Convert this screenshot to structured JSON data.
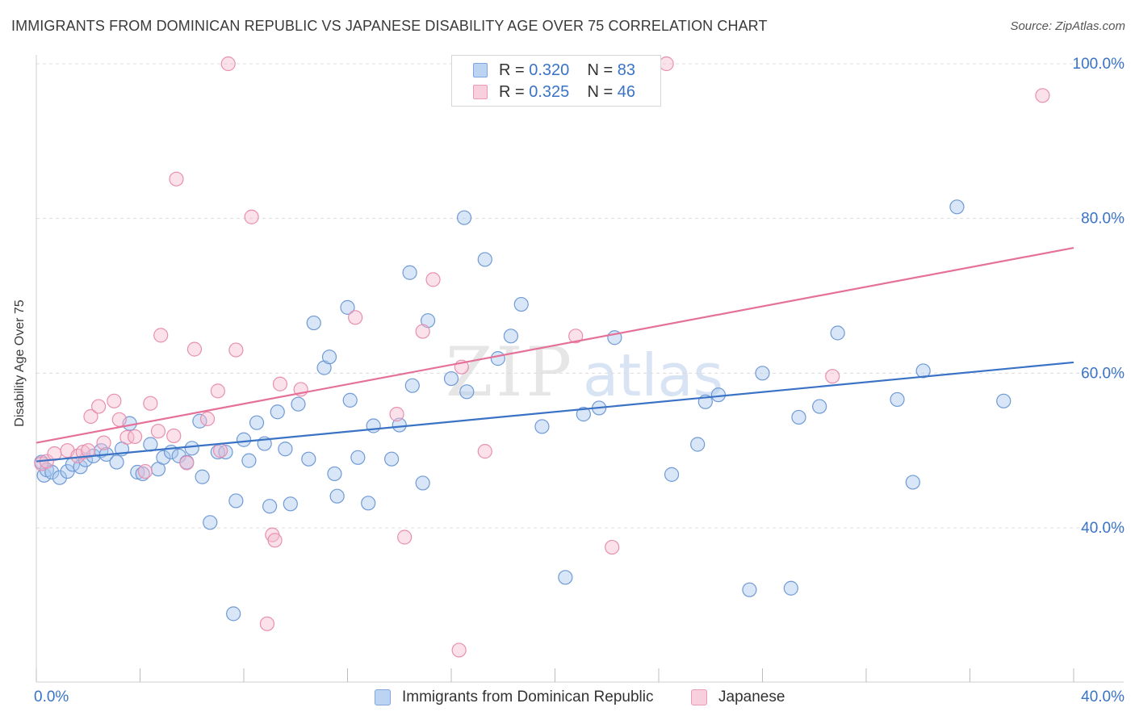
{
  "title": "IMMIGRANTS FROM DOMINICAN REPUBLIC VS JAPANESE DISABILITY AGE OVER 75 CORRELATION CHART",
  "source": "Source: ZipAtlas.com",
  "colors": {
    "blue": "#3a73c6",
    "blue_fill": "#a9c7ee",
    "pink": "#e5719a",
    "pink_fill": "#f4bdd0",
    "grid": "#dcdcdc"
  },
  "legend": {
    "rows": [
      {
        "r_label": "R = ",
        "r_value": "0.320",
        "n_label": "N = ",
        "n_value": "83"
      },
      {
        "r_label": "R = ",
        "r_value": "0.325",
        "n_label": "N = ",
        "n_value": "46"
      }
    ]
  },
  "chart_data": {
    "type": "scatter",
    "title": "IMMIGRANTS FROM DOMINICAN REPUBLIC VS JAPANESE DISABILITY AGE OVER 75 CORRELATION CHART",
    "xlabel": "",
    "ylabel": "Disability Age Over 75",
    "xlim": [
      0,
      40
    ],
    "ylim": [
      20,
      102
    ],
    "x_ticks": [
      {
        "value": 0,
        "label": "0.0%"
      },
      {
        "value": 40,
        "label": "40.0%"
      }
    ],
    "y_ticks": [
      {
        "value": 40,
        "label": "40.0%"
      },
      {
        "value": 60,
        "label": "60.0%"
      },
      {
        "value": 80,
        "label": "80.0%"
      },
      {
        "value": 100,
        "label": "100.0%"
      }
    ],
    "grid": "horizontal dashed",
    "legend_position": "top-center",
    "watermark": "ZIPatlas",
    "series": [
      {
        "name": "Immigrants from Dominican Republic",
        "color": "#3a73c6",
        "r": 0.32,
        "n": 83,
        "trend": {
          "x": [
            0,
            40
          ],
          "y": [
            48.6,
            61.4
          ]
        },
        "points": [
          [
            0.2,
            48.5
          ],
          [
            0.3,
            46.8
          ],
          [
            0.4,
            47.5
          ],
          [
            0.6,
            47.2
          ],
          [
            0.9,
            46.5
          ],
          [
            1.2,
            47.3
          ],
          [
            1.4,
            48.2
          ],
          [
            1.7,
            47.9
          ],
          [
            1.9,
            48.8
          ],
          [
            2.2,
            49.3
          ],
          [
            2.5,
            50.0
          ],
          [
            2.7,
            49.5
          ],
          [
            3.1,
            48.5
          ],
          [
            3.3,
            50.2
          ],
          [
            3.6,
            53.5
          ],
          [
            3.9,
            47.2
          ],
          [
            4.1,
            47.0
          ],
          [
            4.4,
            50.8
          ],
          [
            4.7,
            47.6
          ],
          [
            4.9,
            49.1
          ],
          [
            5.2,
            49.8
          ],
          [
            5.5,
            49.3
          ],
          [
            5.8,
            48.5
          ],
          [
            6.0,
            50.3
          ],
          [
            6.3,
            53.8
          ],
          [
            6.4,
            46.6
          ],
          [
            6.7,
            40.7
          ],
          [
            7.0,
            49.8
          ],
          [
            7.3,
            49.8
          ],
          [
            7.6,
            28.9
          ],
          [
            7.7,
            43.5
          ],
          [
            8.0,
            51.4
          ],
          [
            8.2,
            48.7
          ],
          [
            8.5,
            53.6
          ],
          [
            8.8,
            50.9
          ],
          [
            9.0,
            42.8
          ],
          [
            9.3,
            55.0
          ],
          [
            9.6,
            50.2
          ],
          [
            9.8,
            43.1
          ],
          [
            10.1,
            56.0
          ],
          [
            10.5,
            48.9
          ],
          [
            10.7,
            66.5
          ],
          [
            11.1,
            60.7
          ],
          [
            11.3,
            62.1
          ],
          [
            11.5,
            47.0
          ],
          [
            11.6,
            44.1
          ],
          [
            12.0,
            68.5
          ],
          [
            12.1,
            56.5
          ],
          [
            12.4,
            49.1
          ],
          [
            12.8,
            43.2
          ],
          [
            13.0,
            53.2
          ],
          [
            13.7,
            48.9
          ],
          [
            14.0,
            53.3
          ],
          [
            14.4,
            73.0
          ],
          [
            14.5,
            58.4
          ],
          [
            14.9,
            45.8
          ],
          [
            15.1,
            66.8
          ],
          [
            16.0,
            59.3
          ],
          [
            16.5,
            80.1
          ],
          [
            16.6,
            57.6
          ],
          [
            17.3,
            74.7
          ],
          [
            17.8,
            61.9
          ],
          [
            18.3,
            64.8
          ],
          [
            18.7,
            68.9
          ],
          [
            19.5,
            53.1
          ],
          [
            20.4,
            33.6
          ],
          [
            21.1,
            54.7
          ],
          [
            21.7,
            55.5
          ],
          [
            22.3,
            64.6
          ],
          [
            24.5,
            46.9
          ],
          [
            25.5,
            50.8
          ],
          [
            25.8,
            56.3
          ],
          [
            26.3,
            57.2
          ],
          [
            27.5,
            32.0
          ],
          [
            28.0,
            60.0
          ],
          [
            29.1,
            32.2
          ],
          [
            29.4,
            54.3
          ],
          [
            30.2,
            55.7
          ],
          [
            30.9,
            65.2
          ],
          [
            33.2,
            56.6
          ],
          [
            33.8,
            45.9
          ],
          [
            34.2,
            60.3
          ],
          [
            35.5,
            81.5
          ],
          [
            37.3,
            56.4
          ]
        ]
      },
      {
        "name": "Japanese",
        "color": "#e5719a",
        "r": 0.325,
        "n": 46,
        "trend": {
          "x": [
            0,
            40
          ],
          "y": [
            51.0,
            76.2
          ]
        },
        "points": [
          [
            0.2,
            48.3
          ],
          [
            0.4,
            48.6
          ],
          [
            0.7,
            49.6
          ],
          [
            1.2,
            50.0
          ],
          [
            1.6,
            49.3
          ],
          [
            1.8,
            49.8
          ],
          [
            2.0,
            50.0
          ],
          [
            2.1,
            54.4
          ],
          [
            2.4,
            55.7
          ],
          [
            2.6,
            51.0
          ],
          [
            3.0,
            56.4
          ],
          [
            3.2,
            54.0
          ],
          [
            3.5,
            51.7
          ],
          [
            3.8,
            51.8
          ],
          [
            4.2,
            47.3
          ],
          [
            4.4,
            56.1
          ],
          [
            4.7,
            52.5
          ],
          [
            4.8,
            64.9
          ],
          [
            5.3,
            51.9
          ],
          [
            5.4,
            85.1
          ],
          [
            5.8,
            48.4
          ],
          [
            6.1,
            63.1
          ],
          [
            6.6,
            54.1
          ],
          [
            7.0,
            57.7
          ],
          [
            7.1,
            50.0
          ],
          [
            7.4,
            100.0
          ],
          [
            7.7,
            63.0
          ],
          [
            8.3,
            80.2
          ],
          [
            8.9,
            27.6
          ],
          [
            9.1,
            39.1
          ],
          [
            9.2,
            38.4
          ],
          [
            9.4,
            58.6
          ],
          [
            10.2,
            57.9
          ],
          [
            12.3,
            67.2
          ],
          [
            13.9,
            54.7
          ],
          [
            14.2,
            38.8
          ],
          [
            14.9,
            65.4
          ],
          [
            15.3,
            72.1
          ],
          [
            16.3,
            24.2
          ],
          [
            16.4,
            60.8
          ],
          [
            17.3,
            49.9
          ],
          [
            20.8,
            64.8
          ],
          [
            22.2,
            37.5
          ],
          [
            24.3,
            100.0
          ],
          [
            30.7,
            59.6
          ],
          [
            38.8,
            95.9
          ]
        ]
      }
    ]
  },
  "bottom_legend": [
    {
      "label": "Immigrants from Dominican Republic"
    },
    {
      "label": "Japanese"
    }
  ]
}
